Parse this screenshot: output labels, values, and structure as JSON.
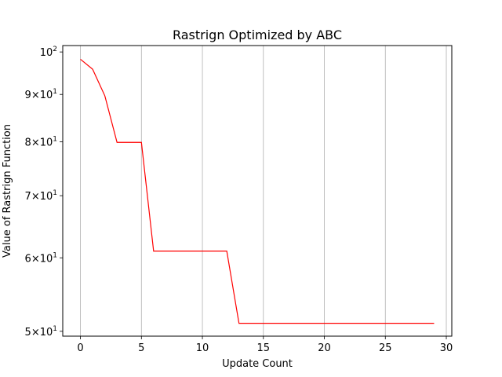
{
  "chart_data": {
    "type": "line",
    "title": "Rastrign Optimized by ABC",
    "xlabel": "Update Count",
    "ylabel": "Value of Rastrign Function",
    "yscale": "log",
    "xlim": [
      -1.45,
      30.45
    ],
    "ylim": [
      49.4,
      101.6
    ],
    "grid": "vertical only (x major ticks)",
    "line_color": "#ff0000",
    "x_ticks": [
      0,
      5,
      10,
      15,
      20,
      25,
      30
    ],
    "x_tick_labels": [
      "0",
      "5",
      "10",
      "15",
      "20",
      "25",
      "30"
    ],
    "y_ticks": [
      50,
      60,
      70,
      80,
      90,
      100
    ],
    "y_tick_labels": [
      {
        "mantissa": "5",
        "exponent": "1"
      },
      {
        "mantissa": "6",
        "exponent": "1"
      },
      {
        "mantissa": "7",
        "exponent": "1"
      },
      {
        "mantissa": "8",
        "exponent": "1"
      },
      {
        "mantissa": "9",
        "exponent": "1"
      },
      {
        "mantissa": "",
        "exponent": "2"
      }
    ],
    "series": [
      {
        "x": [
          0,
          1,
          2,
          3,
          4,
          5,
          6,
          7,
          8,
          9,
          10,
          11,
          12,
          13,
          14,
          15,
          16,
          17,
          18,
          19,
          20,
          21,
          22,
          23,
          24,
          25,
          26,
          27,
          28,
          29
        ],
        "values": [
          98.2,
          95.8,
          89.7,
          79.9,
          79.9,
          79.9,
          61.0,
          61.0,
          61.0,
          61.0,
          61.0,
          61.0,
          61.0,
          51.0,
          51.0,
          51.0,
          51.0,
          51.0,
          51.0,
          51.0,
          51.0,
          51.0,
          51.0,
          51.0,
          51.0,
          51.0,
          51.0,
          51.0,
          51.0,
          51.0
        ]
      }
    ]
  }
}
